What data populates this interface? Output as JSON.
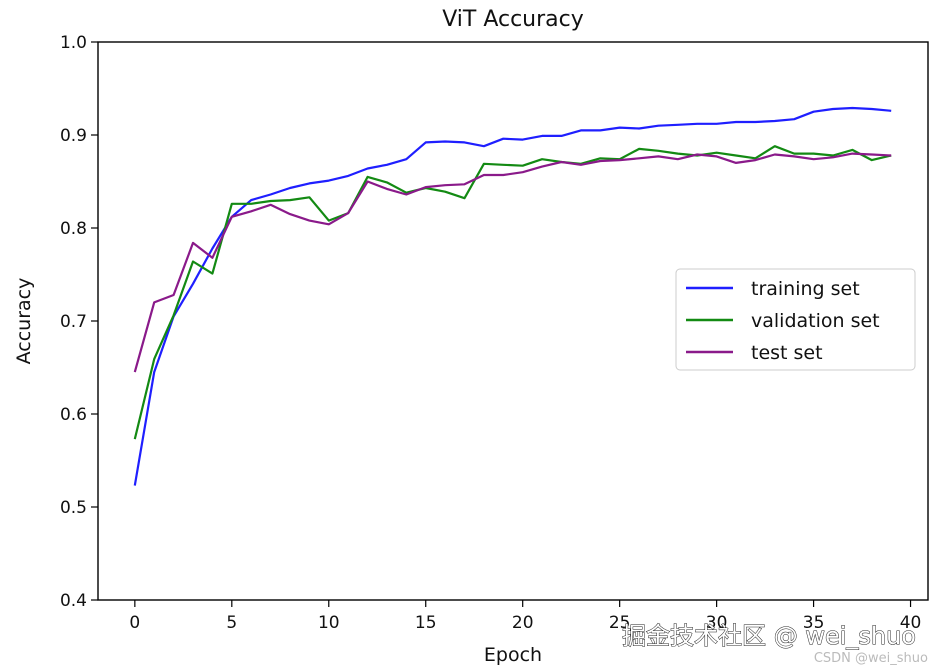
{
  "chart_data": {
    "type": "line",
    "title": "ViT Accuracy",
    "xlabel": "Epoch",
    "ylabel": "Accuracy",
    "xlim": [
      -1.9,
      40.9
    ],
    "ylim": [
      0.4,
      1.0
    ],
    "xticks": [
      0,
      5,
      10,
      15,
      20,
      25,
      30,
      35,
      40
    ],
    "yticks": [
      0.4,
      0.5,
      0.6,
      0.7,
      0.8,
      0.9,
      1.0
    ],
    "ytick_labels": [
      "0.4",
      "0.5",
      "0.6",
      "0.7",
      "0.8",
      "0.9",
      "1.0"
    ],
    "grid": false,
    "legend_position": "center-right",
    "x": [
      0,
      1,
      2,
      3,
      4,
      5,
      6,
      7,
      8,
      9,
      10,
      11,
      12,
      13,
      14,
      15,
      16,
      17,
      18,
      19,
      20,
      21,
      22,
      23,
      24,
      25,
      26,
      27,
      28,
      29,
      30,
      31,
      32,
      33,
      34,
      35,
      36,
      37,
      38,
      39
    ],
    "series": [
      {
        "name": "training set",
        "color": "#1f1fff",
        "values": [
          0.523,
          0.645,
          0.705,
          0.74,
          0.778,
          0.812,
          0.83,
          0.836,
          0.843,
          0.848,
          0.851,
          0.856,
          0.864,
          0.868,
          0.874,
          0.892,
          0.893,
          0.892,
          0.888,
          0.896,
          0.895,
          0.899,
          0.899,
          0.905,
          0.905,
          0.908,
          0.907,
          0.91,
          0.911,
          0.912,
          0.912,
          0.914,
          0.914,
          0.915,
          0.917,
          0.925,
          0.928,
          0.929,
          0.928,
          0.926
        ]
      },
      {
        "name": "validation set",
        "color": "#138a13",
        "values": [
          0.573,
          0.659,
          0.706,
          0.764,
          0.751,
          0.826,
          0.826,
          0.829,
          0.83,
          0.833,
          0.808,
          0.816,
          0.855,
          0.849,
          0.838,
          0.843,
          0.839,
          0.832,
          0.869,
          0.868,
          0.867,
          0.874,
          0.871,
          0.869,
          0.875,
          0.874,
          0.885,
          0.883,
          0.88,
          0.878,
          0.881,
          0.878,
          0.875,
          0.888,
          0.88,
          0.88,
          0.878,
          0.884,
          0.873,
          0.878
        ]
      },
      {
        "name": "test set",
        "color": "#8a1a8a",
        "values": [
          0.645,
          0.72,
          0.728,
          0.784,
          0.768,
          0.812,
          0.818,
          0.825,
          0.815,
          0.808,
          0.804,
          0.816,
          0.85,
          0.842,
          0.836,
          0.844,
          0.846,
          0.847,
          0.857,
          0.857,
          0.86,
          0.866,
          0.871,
          0.868,
          0.872,
          0.873,
          0.875,
          0.877,
          0.874,
          0.879,
          0.877,
          0.87,
          0.873,
          0.879,
          0.877,
          0.874,
          0.876,
          0.88,
          0.879,
          0.878
        ]
      }
    ]
  },
  "watermark": {
    "main": "掘金技术社区 @ wei_shuo",
    "secondary": "CSDN @wei_shuo"
  }
}
